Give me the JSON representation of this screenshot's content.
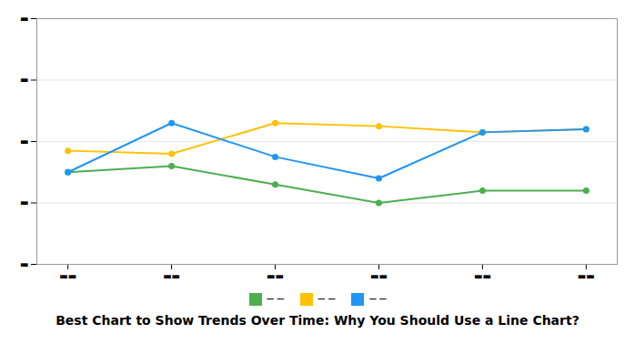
{
  "chart_data": {
    "type": "line",
    "title": "Best Chart to Show Trends Over Time: Why You Should Use a Line Chart?",
    "x": [
      0,
      1,
      2,
      3,
      4,
      5
    ],
    "series": [
      {
        "name": "─ ─",
        "color": "#4CAF50",
        "values": [
          30,
          32,
          26,
          20,
          24,
          24
        ]
      },
      {
        "name": "─ ─",
        "color": "#FFC107",
        "values": [
          37,
          36,
          46,
          45,
          43,
          44
        ]
      },
      {
        "name": "─ ─",
        "color": "#2196F3",
        "values": [
          30,
          46,
          35,
          28,
          43,
          44
        ]
      }
    ],
    "xlim": [
      -0.3,
      5.3
    ],
    "xticks": [
      {
        "value": 0,
        "label": "▬▬"
      },
      {
        "value": 1,
        "label": "▬▬"
      },
      {
        "value": 2,
        "label": "▬▬"
      },
      {
        "value": 3,
        "label": "▬▬"
      },
      {
        "value": 4,
        "label": "▬▬"
      },
      {
        "value": 5,
        "label": "▬▬"
      }
    ],
    "ylim": [
      0,
      80
    ],
    "yticks": [
      {
        "value": 0,
        "label": "▬"
      },
      {
        "value": 20,
        "label": "▬"
      },
      {
        "value": 40,
        "label": "▬"
      },
      {
        "value": 60,
        "label": "▬"
      },
      {
        "value": 80,
        "label": "▬"
      }
    ],
    "grid": true,
    "marker": "circle",
    "legend": "bottom"
  }
}
